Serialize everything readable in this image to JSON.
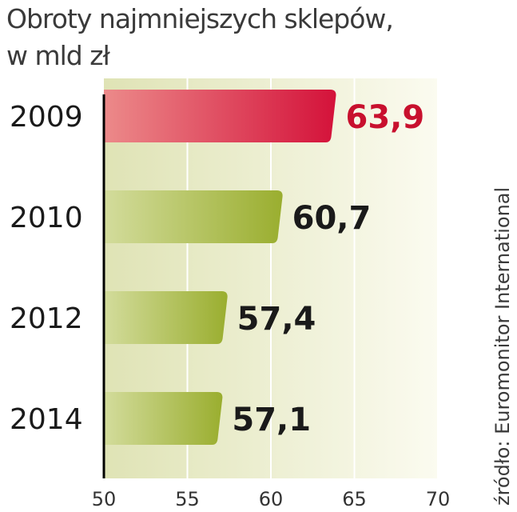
{
  "chart_data": {
    "type": "bar",
    "orientation": "horizontal",
    "title": "Obroty najmniejszych sklepów,",
    "subtitle": "w mld zł",
    "categories": [
      "2009",
      "2010",
      "2012",
      "2014"
    ],
    "values": [
      63.9,
      60.7,
      57.4,
      57.1
    ],
    "value_labels": [
      "63,9",
      "60,7",
      "57,4",
      "57,1"
    ],
    "xlim": [
      50,
      70
    ],
    "xticks": [
      50,
      55,
      60,
      65,
      70
    ],
    "xtick_labels": [
      "50",
      "55",
      "60",
      "65",
      "70"
    ],
    "grid": true,
    "highlight_index": 0,
    "source": "źródło: Euromonitor International",
    "colors": {
      "highlight": "#d4123a",
      "highlight_light": "#ec8a8a",
      "bar": "#9aae2f",
      "bar_light": "#d3dc9c",
      "plot_bg_left": "#dfe3b5",
      "plot_bg_right": "#fbfbf0",
      "grid": "#ffffff",
      "axis": "#000000",
      "text": "#1a1a1a",
      "highlight_text": "#c8102e"
    }
  }
}
